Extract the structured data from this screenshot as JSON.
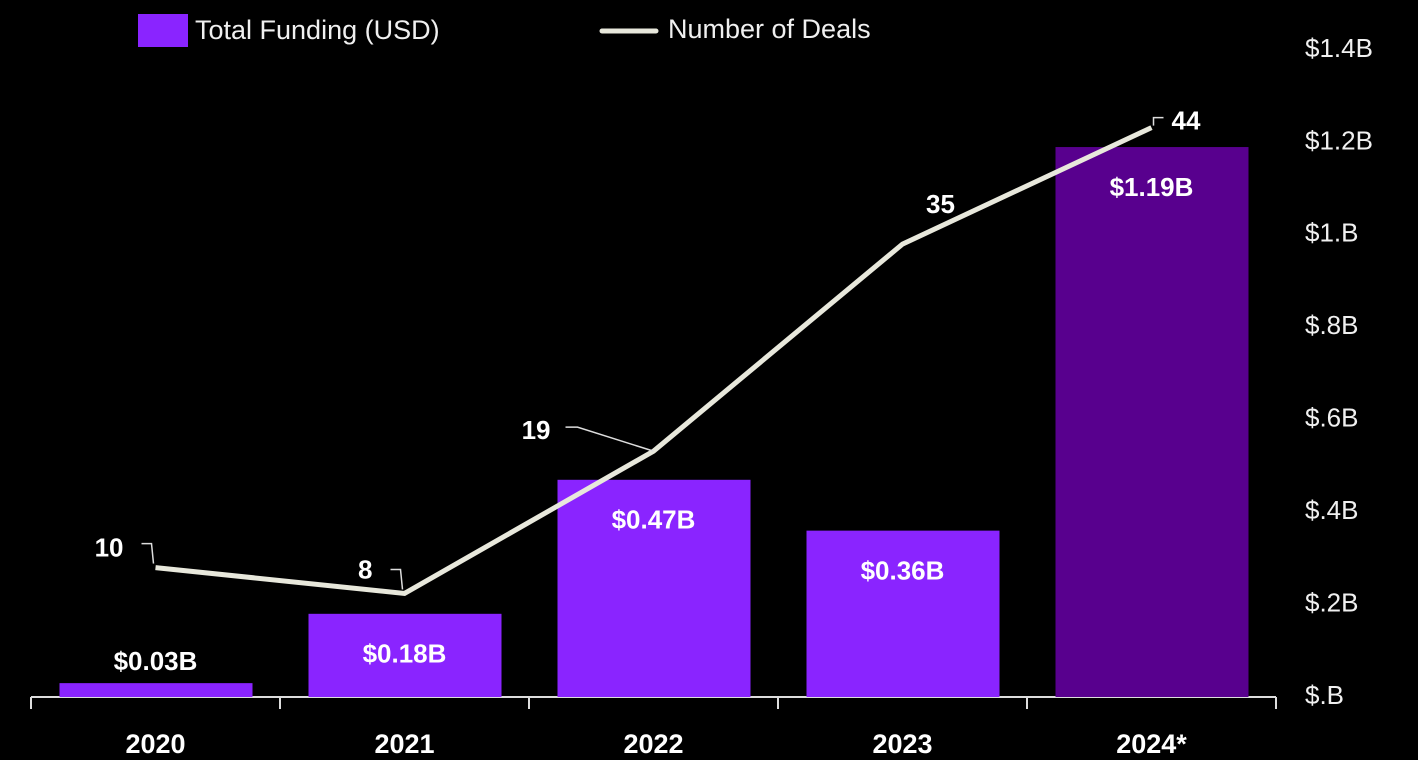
{
  "chart_data": {
    "type": "bar_line",
    "categories": [
      "2020",
      "2021",
      "2022",
      "2023",
      "2024*"
    ],
    "series": [
      {
        "name": "Total Funding (USD)",
        "color": "#8a24ff",
        "colors": [
          "#8a24ff",
          "#8a24ff",
          "#8a24ff",
          "#8a24ff",
          "#58008e"
        ],
        "values": [
          0.03,
          0.18,
          0.47,
          0.36,
          1.19
        ],
        "value_labels": [
          "$0.03B",
          "$0.18B",
          "$0.47B",
          "$0.36B",
          "$1.19B"
        ]
      },
      {
        "name": "Number of Deals",
        "color": "#e8e8dc",
        "axis": "y2",
        "values": [
          10,
          8,
          19,
          35,
          44
        ]
      }
    ],
    "ylim": [
      0,
      1.4
    ],
    "yticks": [
      {
        "value": 0,
        "label": "$.B"
      },
      {
        "value": 0.2,
        "label": "$.2B"
      },
      {
        "value": 0.4,
        "label": "$.4B"
      },
      {
        "value": 0.6,
        "label": "$.6B"
      },
      {
        "value": 0.8,
        "label": "$.8B"
      },
      {
        "value": 1,
        "label": "$1.B"
      },
      {
        "value": 1.2,
        "label": "$1.2B"
      },
      {
        "value": 1.4,
        "label": "$1.4B"
      }
    ],
    "y2lim": [
      0,
      50
    ],
    "grid": false,
    "legend": "top-left"
  }
}
